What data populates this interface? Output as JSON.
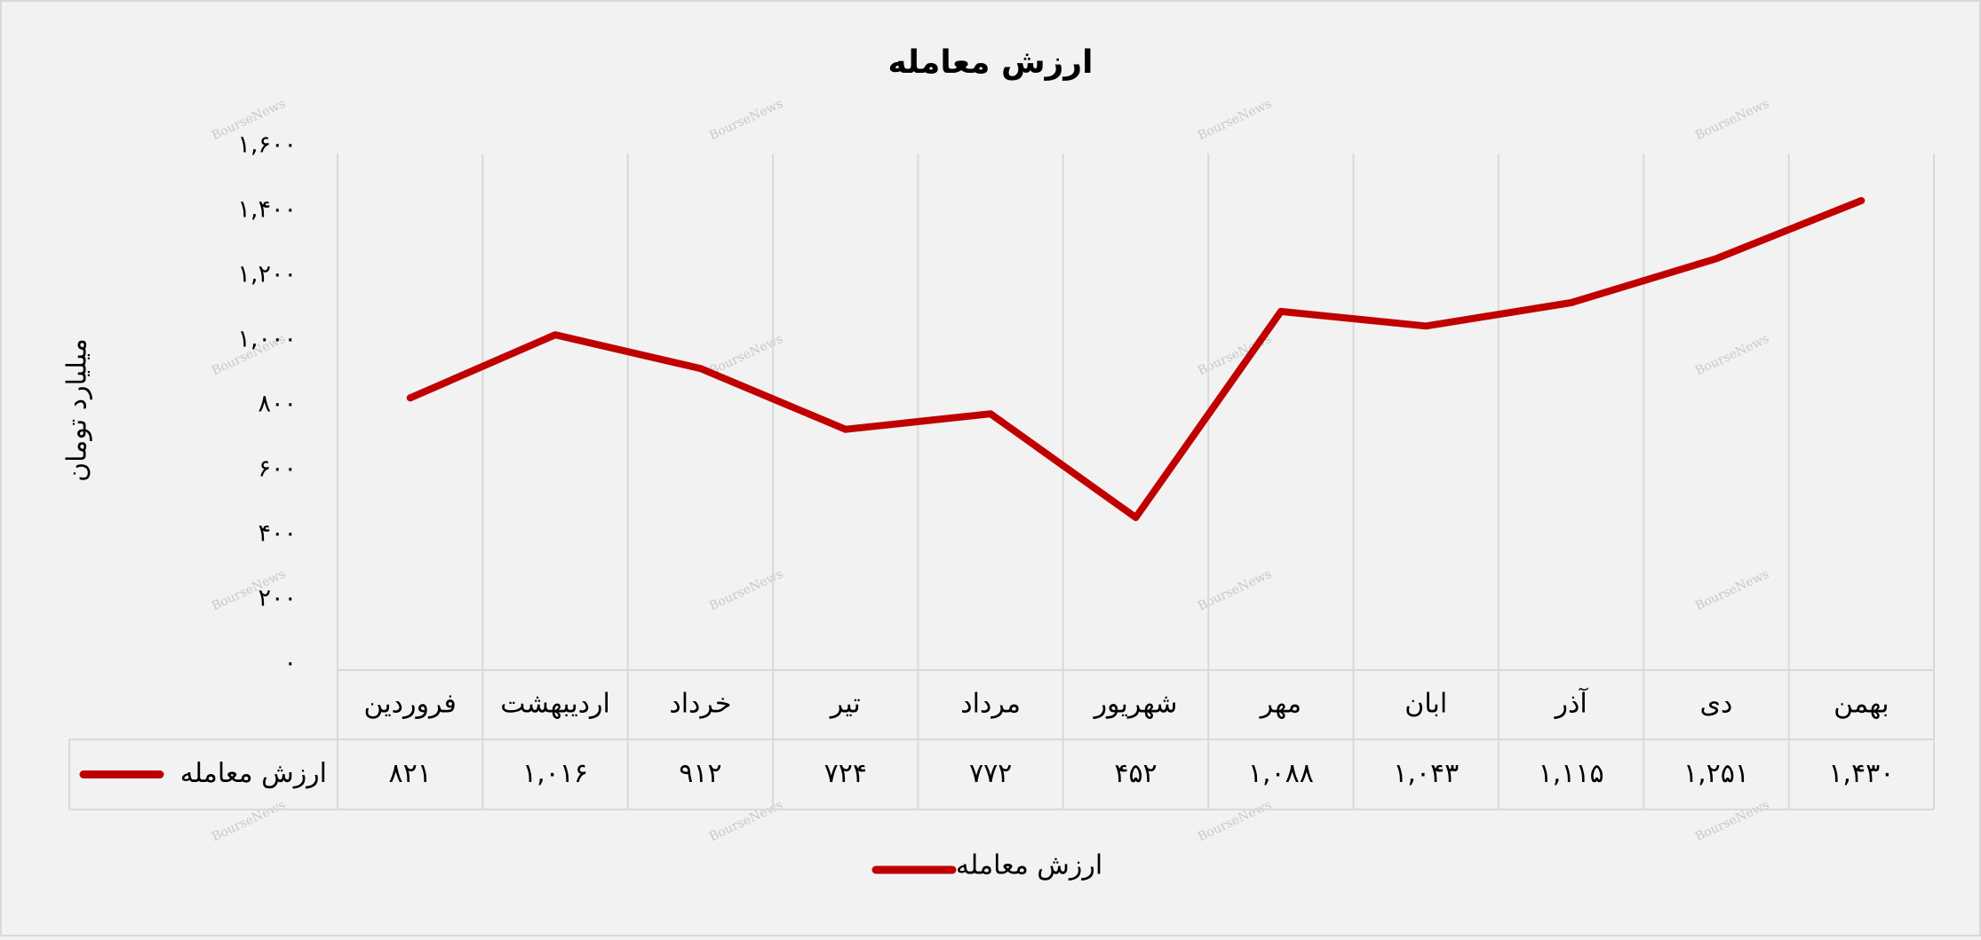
{
  "chart_data": {
    "type": "line",
    "title": "ارزش معامله",
    "y_axis_label": "میلیارد تومان",
    "watermark": "BourseNews",
    "categories": [
      "فروردین",
      "اردیبهشت",
      "خرداد",
      "تیر",
      "مرداد",
      "شهریور",
      "مهر",
      "ابان",
      "آذر",
      "دی",
      "بهمن"
    ],
    "series": [
      {
        "name": "ارزش معامله",
        "color": "#c00000",
        "values": [
          821,
          1016,
          912,
          724,
          772,
          452,
          1088,
          1043,
          1115,
          1251,
          1430
        ],
        "value_labels": [
          "۸۲۱",
          "۱,۰۱۶",
          "۹۱۲",
          "۷۲۴",
          "۷۷۲",
          "۴۵۲",
          "۱,۰۸۸",
          "۱,۰۴۳",
          "۱,۱۱۵",
          "۱,۲۵۱",
          "۱,۴۳۰"
        ]
      }
    ],
    "ylim": [
      0,
      1600
    ],
    "yticks": [
      {
        "value": 0,
        "label": "۰"
      },
      {
        "value": 200,
        "label": "۲۰۰"
      },
      {
        "value": 400,
        "label": "۴۰۰"
      },
      {
        "value": 600,
        "label": "۶۰۰"
      },
      {
        "value": 800,
        "label": "۸۰۰"
      },
      {
        "value": 1000,
        "label": "۱,۰۰۰"
      },
      {
        "value": 1200,
        "label": "۱,۲۰۰"
      },
      {
        "value": 1400,
        "label": "۱,۴۰۰"
      },
      {
        "value": 1600,
        "label": "۱,۶۰۰"
      }
    ],
    "legend": "bottom",
    "data_table": true
  }
}
